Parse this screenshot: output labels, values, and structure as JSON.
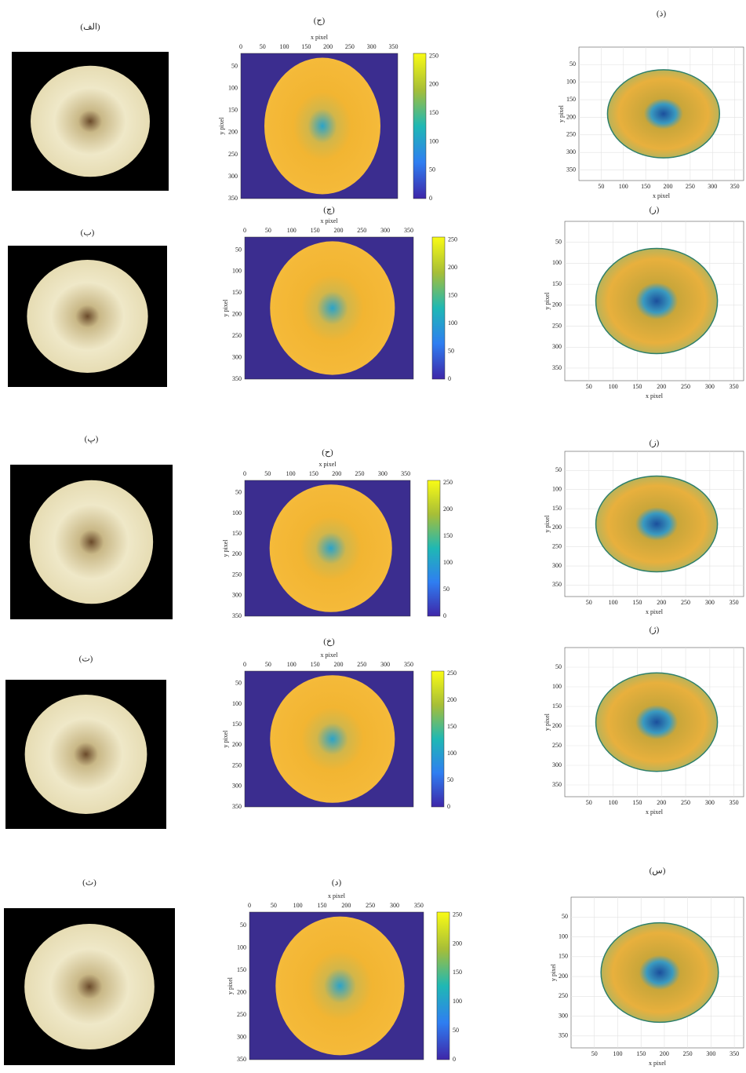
{
  "rows": [
    {
      "photo_label": "(الف)",
      "map_label": "(ج)",
      "contour_label": "(ذ)"
    },
    {
      "photo_label": "(ب)",
      "map_label": "(چ)",
      "contour_label": "(ر)"
    },
    {
      "photo_label": "(پ)",
      "map_label": "(ح)",
      "contour_label": "(ز)"
    },
    {
      "photo_label": "(ت)",
      "map_label": "(خ)",
      "contour_label": "(ژ)"
    },
    {
      "photo_label": "(ث)",
      "map_label": "(د)",
      "contour_label": "(س)"
    }
  ],
  "x_axis_label": "x pixel",
  "y_axis_label": "y pixel",
  "map_x_ticks": [
    0,
    50,
    100,
    150,
    200,
    250,
    300,
    350
  ],
  "map_y_ticks": [
    50,
    100,
    150,
    200,
    250,
    300,
    350
  ],
  "colorbar_ticks": [
    0,
    50,
    100,
    150,
    200,
    250
  ],
  "contour_x_ticks": [
    50,
    100,
    150,
    200,
    250,
    300,
    350
  ],
  "contour_y_ticks": [
    50,
    100,
    150,
    200,
    250,
    300,
    350
  ]
}
